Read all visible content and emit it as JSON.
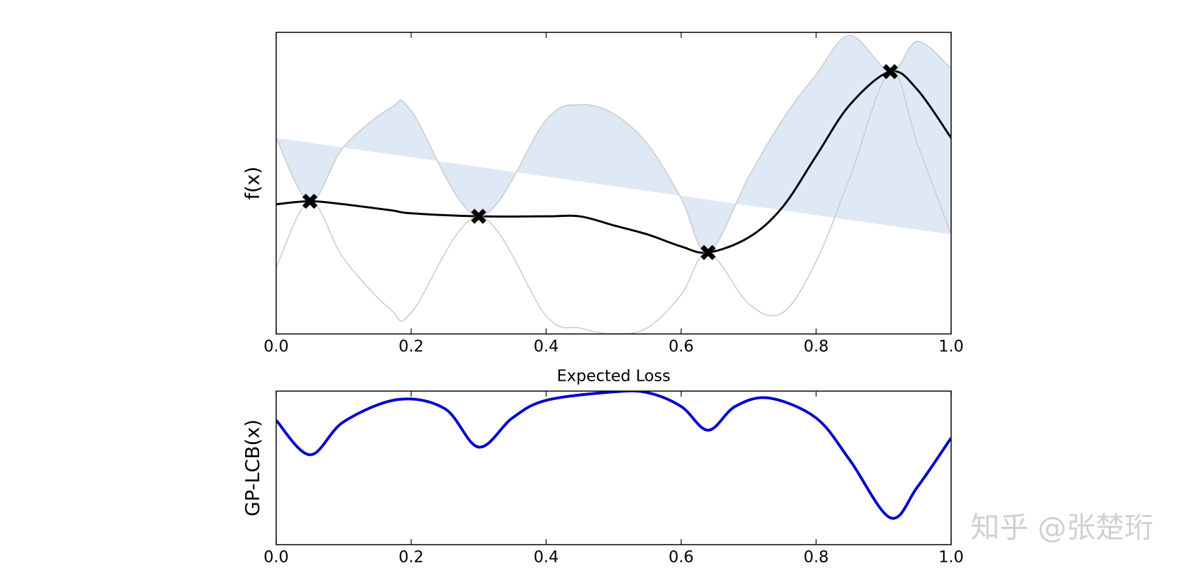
{
  "chart_data": [
    {
      "type": "line",
      "xlabel": "Expected Loss",
      "ylabel": "f(x)",
      "x": [
        0,
        0.05,
        0.1,
        0.17,
        0.2,
        0.3,
        0.4,
        0.45,
        0.5,
        0.55,
        0.6,
        0.64,
        0.7,
        0.75,
        0.8,
        0.85,
        0.91,
        0.95,
        1.0
      ],
      "lines": [
        {
          "role": "mean",
          "color": "#000000",
          "values": [
            0.43,
            0.44,
            0.43,
            0.41,
            0.4,
            0.39,
            0.39,
            0.39,
            0.36,
            0.33,
            0.29,
            0.27,
            0.32,
            0.42,
            0.59,
            0.76,
            0.87,
            0.81,
            0.65
          ]
        },
        {
          "role": "upper",
          "color": "#cccccc",
          "values": [
            0.65,
            0.44,
            0.62,
            0.75,
            0.74,
            0.39,
            0.71,
            0.76,
            0.73,
            0.63,
            0.45,
            0.27,
            0.52,
            0.71,
            0.86,
            0.99,
            0.87,
            0.97,
            0.88
          ]
        },
        {
          "role": "lower",
          "color": "#cccccc",
          "values": [
            0.22,
            0.44,
            0.25,
            0.08,
            0.07,
            0.39,
            0.06,
            0.02,
            0.0,
            0.02,
            0.13,
            0.27,
            0.1,
            0.07,
            0.24,
            0.52,
            0.87,
            0.63,
            0.33
          ]
        }
      ],
      "band_color": "#c5d6ec",
      "points": {
        "color": "#000000",
        "x": [
          0.05,
          0.3,
          0.64,
          0.91
        ],
        "values": [
          0.44,
          0.39,
          0.27,
          0.87
        ]
      },
      "xlim": [
        0,
        1
      ],
      "ylim": [
        0,
        1
      ],
      "xticks": [
        {
          "value": 0,
          "label": "0.0"
        },
        {
          "value": 0.2,
          "label": "0.2"
        },
        {
          "value": 0.4,
          "label": "0.4"
        },
        {
          "value": 0.6,
          "label": "0.6"
        },
        {
          "value": 0.8,
          "label": "0.8"
        },
        {
          "value": 1.0,
          "label": "1.0"
        }
      ]
    },
    {
      "type": "line",
      "ylabel": "GP-LCB(x)",
      "x": [
        0,
        0.05,
        0.1,
        0.18,
        0.25,
        0.3,
        0.35,
        0.4,
        0.5,
        0.55,
        0.6,
        0.64,
        0.68,
        0.73,
        0.8,
        0.85,
        0.91,
        0.95,
        1.0
      ],
      "lines": [
        {
          "role": "acquisition",
          "color": "#0000cc",
          "values": [
            0.81,
            0.585,
            0.8,
            0.945,
            0.885,
            0.635,
            0.825,
            0.94,
            0.995,
            0.99,
            0.9,
            0.745,
            0.9,
            0.955,
            0.825,
            0.55,
            0.175,
            0.375,
            0.695
          ]
        }
      ],
      "xlim": [
        0,
        1
      ],
      "ylim": [
        0,
        1
      ],
      "xticks": [
        {
          "value": 0,
          "label": "0.0"
        },
        {
          "value": 0.2,
          "label": "0.2"
        },
        {
          "value": 0.4,
          "label": "0.4"
        },
        {
          "value": 0.6,
          "label": "0.6"
        },
        {
          "value": 0.8,
          "label": "0.8"
        },
        {
          "value": 1.0,
          "label": "1.0"
        }
      ]
    }
  ],
  "watermark": "知乎 @张楚珩"
}
